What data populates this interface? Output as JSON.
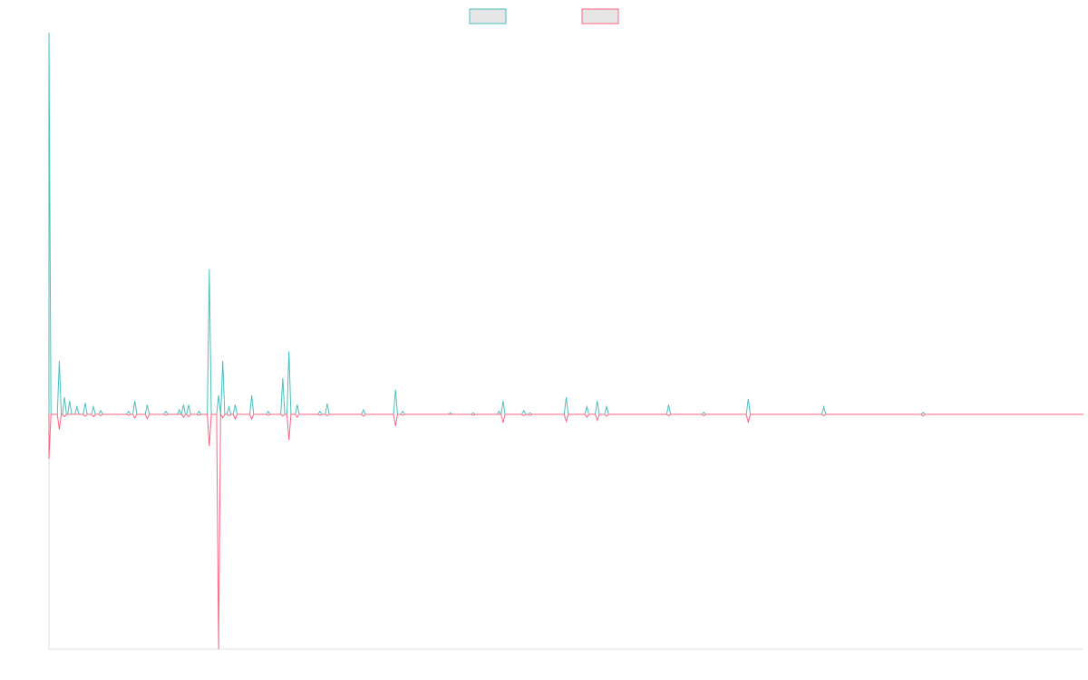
{
  "chart_data": {
    "type": "line",
    "title": "",
    "xlabel": "",
    "ylabel": "",
    "grid": false,
    "legend_position": "top-center",
    "ylim": [
      -1.0,
      1.0
    ],
    "xlim": [
      0,
      1000
    ],
    "series": [
      {
        "color": "#4bc0c0",
        "fill": "#e6e6e6",
        "spikes": [
          [
            0,
            1.0
          ],
          [
            10,
            0.14
          ],
          [
            15,
            0.045
          ],
          [
            20,
            0.035
          ],
          [
            27,
            0.02
          ],
          [
            35,
            0.03
          ],
          [
            43,
            0.02
          ],
          [
            50,
            0.01
          ],
          [
            77,
            0.008
          ],
          [
            83,
            0.035
          ],
          [
            95,
            0.025
          ],
          [
            113,
            0.008
          ],
          [
            126,
            0.012
          ],
          [
            130,
            0.025
          ],
          [
            135,
            0.025
          ],
          [
            145,
            0.008
          ],
          [
            155,
            0.38
          ],
          [
            164,
            0.05
          ],
          [
            168,
            0.14
          ],
          [
            174,
            0.02
          ],
          [
            180,
            0.025
          ],
          [
            196,
            0.05
          ],
          [
            212,
            0.008
          ],
          [
            226,
            0.095
          ],
          [
            232,
            0.165
          ],
          [
            240,
            0.025
          ],
          [
            262,
            0.008
          ],
          [
            269,
            0.028
          ],
          [
            304,
            0.012
          ],
          [
            335,
            0.065
          ],
          [
            342,
            0.008
          ],
          [
            388,
            0.004
          ],
          [
            410,
            0.004
          ],
          [
            435,
            0.008
          ],
          [
            439,
            0.035
          ],
          [
            459,
            0.01
          ],
          [
            465,
            0.004
          ],
          [
            500,
            0.045
          ],
          [
            520,
            0.02
          ],
          [
            530,
            0.035
          ],
          [
            539,
            0.02
          ],
          [
            599,
            0.025
          ],
          [
            633,
            0.005
          ],
          [
            676,
            0.04
          ],
          [
            749,
            0.02
          ],
          [
            845,
            0.005
          ]
        ]
      },
      {
        "color": "#ff6384",
        "fill": "#e6e6e6",
        "spikes": [
          [
            0,
            -0.19
          ],
          [
            10,
            -0.065
          ],
          [
            15,
            -0.01
          ],
          [
            35,
            -0.008
          ],
          [
            43,
            -0.01
          ],
          [
            50,
            -0.006
          ],
          [
            77,
            -0.004
          ],
          [
            83,
            -0.015
          ],
          [
            95,
            -0.018
          ],
          [
            113,
            -0.004
          ],
          [
            130,
            -0.012
          ],
          [
            135,
            -0.01
          ],
          [
            145,
            -0.004
          ],
          [
            155,
            -0.135
          ],
          [
            164,
            -1.0
          ],
          [
            168,
            -0.015
          ],
          [
            174,
            -0.006
          ],
          [
            180,
            -0.02
          ],
          [
            196,
            -0.02
          ],
          [
            212,
            -0.004
          ],
          [
            226,
            -0.008
          ],
          [
            232,
            -0.11
          ],
          [
            240,
            -0.012
          ],
          [
            262,
            -0.004
          ],
          [
            269,
            -0.006
          ],
          [
            304,
            -0.008
          ],
          [
            335,
            -0.05
          ],
          [
            342,
            -0.004
          ],
          [
            410,
            -0.004
          ],
          [
            439,
            -0.035
          ],
          [
            459,
            -0.006
          ],
          [
            465,
            -0.004
          ],
          [
            500,
            -0.03
          ],
          [
            520,
            -0.012
          ],
          [
            530,
            -0.025
          ],
          [
            539,
            -0.008
          ],
          [
            599,
            -0.006
          ],
          [
            633,
            -0.006
          ],
          [
            676,
            -0.035
          ],
          [
            749,
            -0.006
          ],
          [
            845,
            -0.007
          ]
        ]
      }
    ]
  }
}
